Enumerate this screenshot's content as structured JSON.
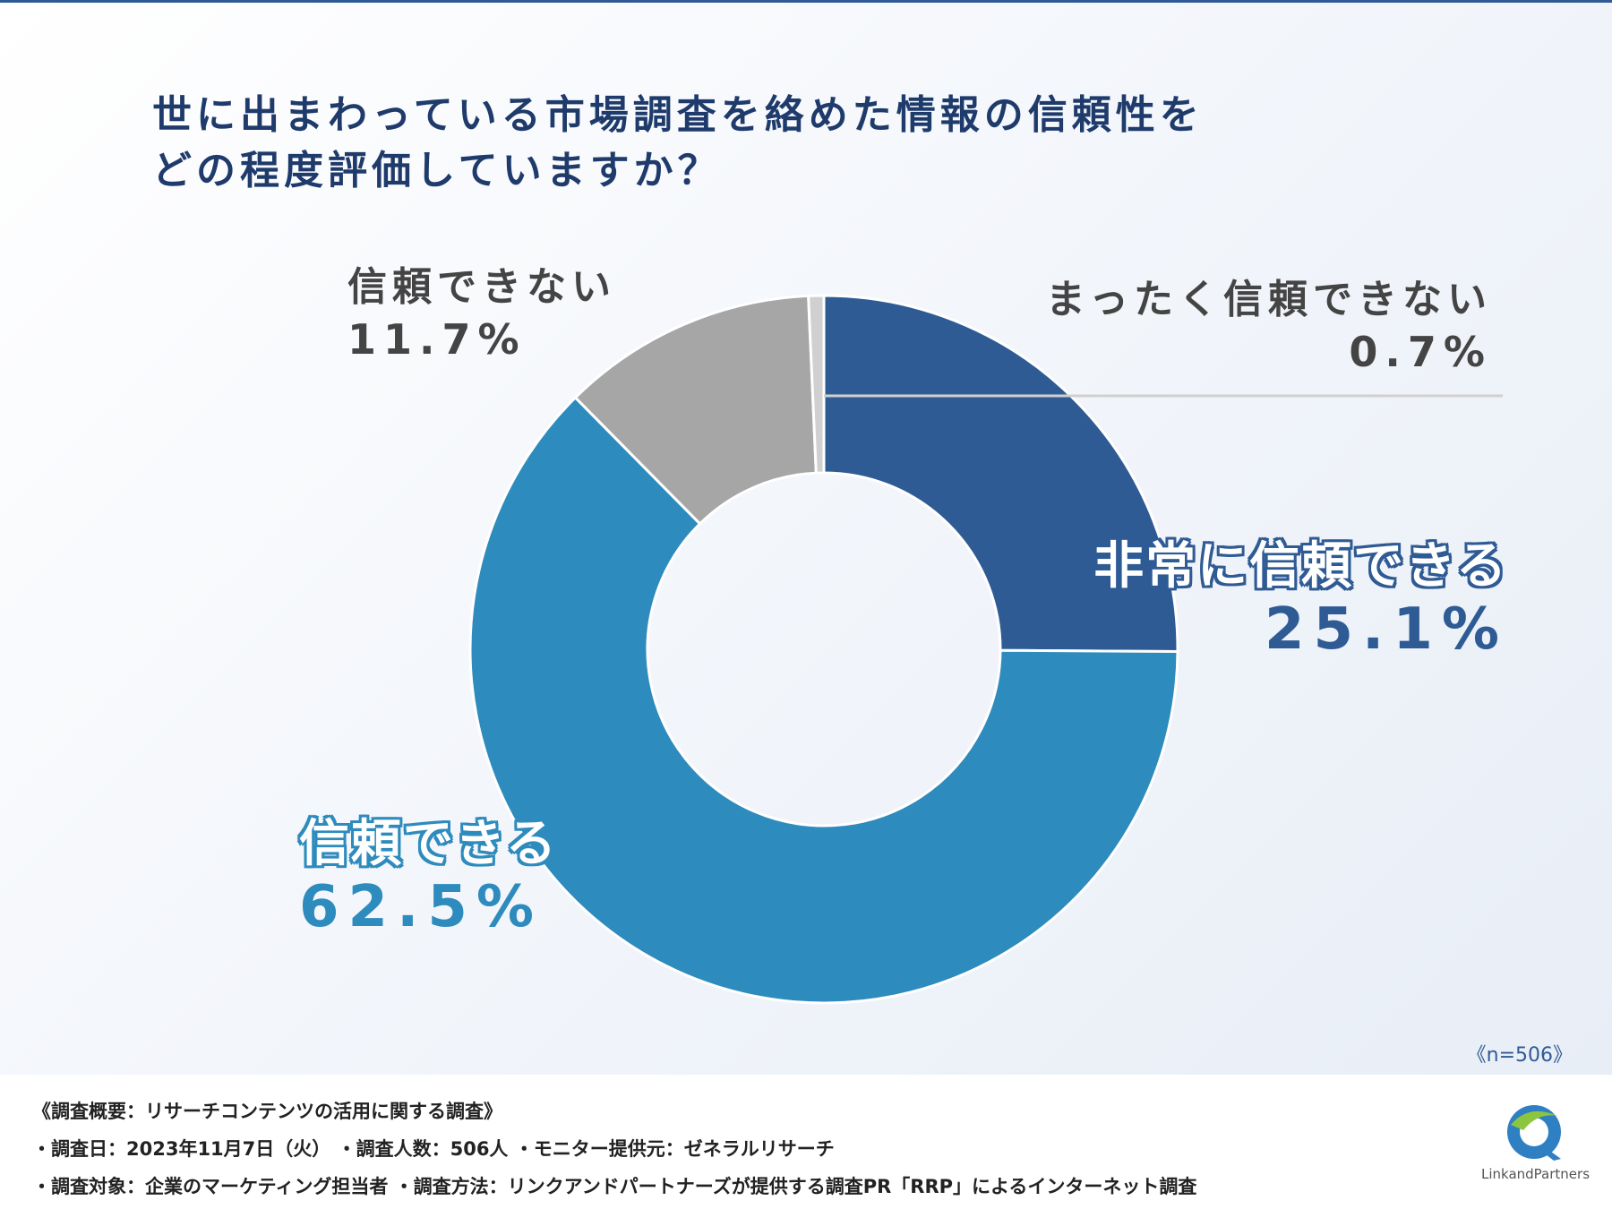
{
  "title": {
    "line1": "世に出まわっている市場調査を絡めた情報の信頼性を",
    "line2": "どの程度評価していますか？"
  },
  "chart_data": {
    "type": "pie",
    "variant": "donut",
    "title": "世に出まわっている市場調査を絡めた情報の信頼性をどの程度評価していますか？",
    "start": "12 o'clock, clockwise",
    "slices": [
      {
        "label": "非常に信頼できる",
        "value": 25.1,
        "value_label": "25.1%",
        "color": "#2f5b95"
      },
      {
        "label": "信頼できる",
        "value": 62.5,
        "value_label": "62.5%",
        "color": "#2e8bbd"
      },
      {
        "label": "信頼できない",
        "value": 11.7,
        "value_label": "11.7%",
        "color": "#a6a6a6"
      },
      {
        "label": "まったく信頼できない",
        "value": 0.7,
        "value_label": "0.7%",
        "color": "#d0d0d0"
      }
    ],
    "sample": "《n=506》"
  },
  "footer": {
    "line1": "《調査概要：リサーチコンテンツの活用に関する調査》",
    "line2": "・調査日：2023年11月7日（火） ・調査人数：506人 ・モニター提供元：ゼネラルリサーチ",
    "line3": "・調査対象：企業のマーケティング担当者 ・調査方法：リンクアンドパートナーズが提供する調査PR「RRP」によるインターネット調査"
  },
  "logo": {
    "icon": "link-and-partners-logo-icon",
    "text": "LinkandPartners"
  }
}
